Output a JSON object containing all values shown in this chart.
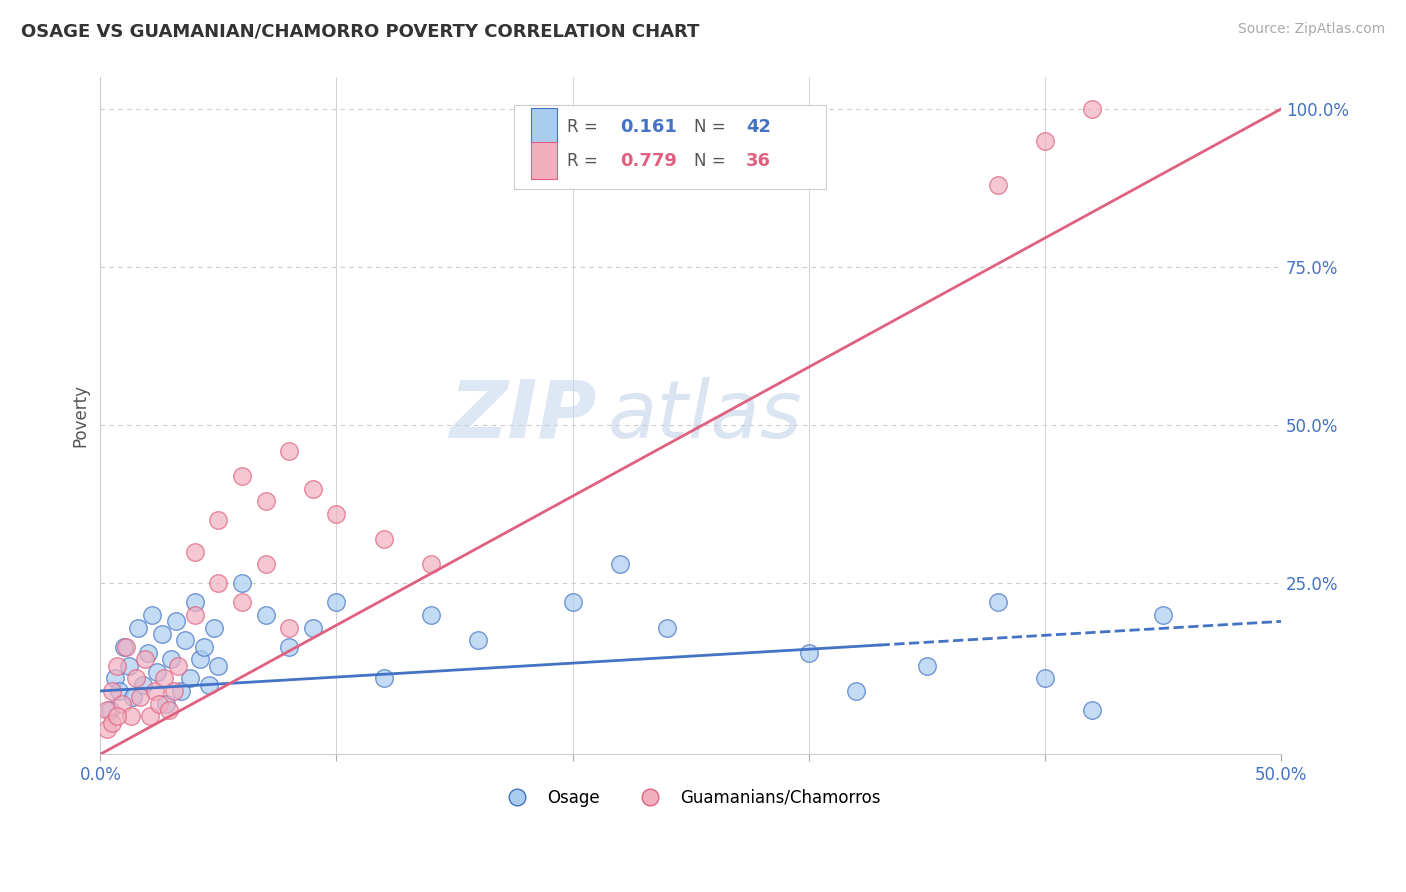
{
  "title": "OSAGE VS GUAMANIAN/CHAMORRO POVERTY CORRELATION CHART",
  "source_text": "Source: ZipAtlas.com",
  "ylabel": "Poverty",
  "watermark_zip": "ZIP",
  "watermark_atlas": "atlas",
  "xlim": [
    0.0,
    0.5
  ],
  "ylim": [
    -0.02,
    1.05
  ],
  "xticks": [
    0.0,
    0.1,
    0.2,
    0.3,
    0.4,
    0.5
  ],
  "xticklabels": [
    "0.0%",
    "",
    "",
    "",
    "",
    "50.0%"
  ],
  "yticks_right": [
    0.0,
    0.25,
    0.5,
    0.75,
    1.0
  ],
  "yticklabels_right": [
    "",
    "25.0%",
    "50.0%",
    "75.0%",
    "100.0%"
  ],
  "grid_color": "#cccccc",
  "background_color": "#ffffff",
  "osage_color": "#aaccee",
  "guamanian_color": "#f0b0bf",
  "osage_line_color": "#4472c4",
  "guamanian_line_color": "#e06080",
  "R_osage": 0.161,
  "N_osage": 42,
  "R_guamanian": 0.779,
  "N_guamanian": 36,
  "osage_x": [
    0.004,
    0.006,
    0.008,
    0.01,
    0.012,
    0.014,
    0.016,
    0.018,
    0.02,
    0.022,
    0.024,
    0.026,
    0.028,
    0.03,
    0.032,
    0.034,
    0.036,
    0.038,
    0.04,
    0.042,
    0.044,
    0.046,
    0.048,
    0.05,
    0.06,
    0.07,
    0.08,
    0.09,
    0.1,
    0.12,
    0.14,
    0.16,
    0.2,
    0.22,
    0.24,
    0.3,
    0.32,
    0.35,
    0.38,
    0.4,
    0.42,
    0.45
  ],
  "osage_y": [
    0.05,
    0.1,
    0.08,
    0.15,
    0.12,
    0.07,
    0.18,
    0.09,
    0.14,
    0.2,
    0.11,
    0.17,
    0.06,
    0.13,
    0.19,
    0.08,
    0.16,
    0.1,
    0.22,
    0.13,
    0.15,
    0.09,
    0.18,
    0.12,
    0.25,
    0.2,
    0.15,
    0.18,
    0.22,
    0.1,
    0.2,
    0.16,
    0.22,
    0.28,
    0.18,
    0.14,
    0.08,
    0.12,
    0.22,
    0.1,
    0.05,
    0.2
  ],
  "guamanian_x": [
    0.003,
    0.005,
    0.007,
    0.009,
    0.011,
    0.013,
    0.015,
    0.017,
    0.019,
    0.021,
    0.023,
    0.025,
    0.027,
    0.029,
    0.031,
    0.033,
    0.04,
    0.05,
    0.06,
    0.07,
    0.08,
    0.09,
    0.1,
    0.12,
    0.14,
    0.04,
    0.05,
    0.06,
    0.07,
    0.08,
    0.003,
    0.005,
    0.007,
    0.38,
    0.4,
    0.42
  ],
  "guamanian_y": [
    0.05,
    0.08,
    0.12,
    0.06,
    0.15,
    0.04,
    0.1,
    0.07,
    0.13,
    0.04,
    0.08,
    0.06,
    0.1,
    0.05,
    0.08,
    0.12,
    0.3,
    0.35,
    0.42,
    0.38,
    0.46,
    0.4,
    0.36,
    0.32,
    0.28,
    0.2,
    0.25,
    0.22,
    0.28,
    0.18,
    0.02,
    0.03,
    0.04,
    0.88,
    0.95,
    1.0
  ]
}
